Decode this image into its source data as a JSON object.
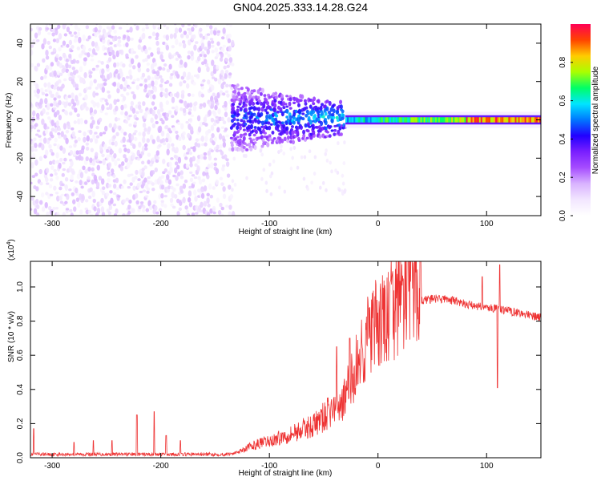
{
  "title": "GN04.2025.333.14.28.G24",
  "colors": {
    "snr_line": "#ee3333",
    "colormap": [
      "#ffffff",
      "#f2e6ff",
      "#d9b3ff",
      "#a64dff",
      "#7a1fff",
      "#2200ff",
      "#0077ff",
      "#00e5ff",
      "#00ff66",
      "#aaff00",
      "#ffcc00",
      "#ff4400",
      "#ff0055"
    ]
  },
  "chart_data": [
    {
      "type": "heatmap",
      "xlabel": "Height of straight line (km)",
      "ylabel": "Frequency (Hz)",
      "xlim": [
        -320,
        150
      ],
      "ylim": [
        -50,
        50
      ],
      "x_ticks": [
        -300,
        -200,
        -100,
        0,
        100
      ],
      "x_tick_labels": [
        "-300",
        "-200",
        "-100",
        "0",
        "100"
      ],
      "y_ticks": [
        -40,
        -20,
        0,
        20,
        40
      ],
      "y_tick_labels": [
        "-40",
        "-20",
        "0",
        "20",
        "40"
      ],
      "colorbar": {
        "label": "Normalized spectral amplitude",
        "range": [
          0,
          1
        ],
        "ticks": [
          0.0,
          0.2,
          0.4,
          0.6,
          0.8
        ],
        "tick_labels": [
          "0.0",
          "0.2",
          "0.4",
          "0.6",
          "0.8"
        ]
      },
      "regions": [
        {
          "x": [
            -320,
            -135
          ],
          "freq_spread": 50,
          "amplitude": 0.1,
          "pattern": "broadband"
        },
        {
          "x": [
            -135,
            -30
          ],
          "freq_spread": 15,
          "amplitude": 0.3,
          "pattern": "narrowing"
        },
        {
          "x": [
            -30,
            150
          ],
          "freq_spread": 3,
          "amplitude": 0.95,
          "pattern": "line near 0 Hz"
        }
      ]
    },
    {
      "type": "line",
      "xlabel": "Height of straight line (km)",
      "ylabel": "SNR (10 * v/v)",
      "y_scale_label": "(x10",
      "y_scale_exp": "4",
      "xlim": [
        -320,
        150
      ],
      "ylim": [
        0,
        1.15
      ],
      "x_ticks": [
        -300,
        -200,
        -100,
        0,
        100
      ],
      "x_tick_labels": [
        "-300",
        "-200",
        "-100",
        "0",
        "100"
      ],
      "y_ticks": [
        0.0,
        0.2,
        0.4,
        0.6,
        0.8,
        1.0
      ],
      "y_tick_labels": [
        "0.0",
        "0.2",
        "0.4",
        "0.6",
        "0.8",
        "1.0"
      ],
      "series": [
        {
          "x": [
            -320,
            -300,
            -280,
            -260,
            -240,
            -220,
            -200,
            -180,
            -160,
            -140,
            -130,
            -120,
            -110,
            -100,
            -80,
            -60,
            -50,
            -40,
            -30,
            -20,
            -10,
            0,
            10,
            20,
            30,
            40,
            50,
            60,
            70,
            80,
            90,
            100,
            110,
            120,
            130,
            140,
            150
          ],
          "y": [
            0.02,
            0.02,
            0.02,
            0.02,
            0.02,
            0.02,
            0.02,
            0.02,
            0.02,
            0.02,
            0.03,
            0.05,
            0.07,
            0.08,
            0.12,
            0.16,
            0.2,
            0.25,
            0.3,
            0.45,
            0.6,
            0.65,
            0.7,
            0.8,
            0.88,
            0.92,
            0.93,
            0.93,
            0.92,
            0.9,
            0.89,
            0.88,
            0.87,
            0.86,
            0.85,
            0.83,
            0.82
          ]
        }
      ],
      "spikes": [
        {
          "x": -317,
          "y": 0.17
        },
        {
          "x": -280,
          "y": 0.09
        },
        {
          "x": -262,
          "y": 0.1
        },
        {
          "x": -245,
          "y": 0.1
        },
        {
          "x": -222,
          "y": 0.25
        },
        {
          "x": -206,
          "y": 0.27
        },
        {
          "x": -195,
          "y": 0.13
        },
        {
          "x": -182,
          "y": 0.1
        },
        {
          "x": -38,
          "y": 0.65
        },
        {
          "x": -26,
          "y": 0.7
        },
        {
          "x": 96,
          "y": 1.06
        },
        {
          "x": 110,
          "y": 0.41
        },
        {
          "x": 112,
          "y": 1.13
        }
      ]
    }
  ]
}
